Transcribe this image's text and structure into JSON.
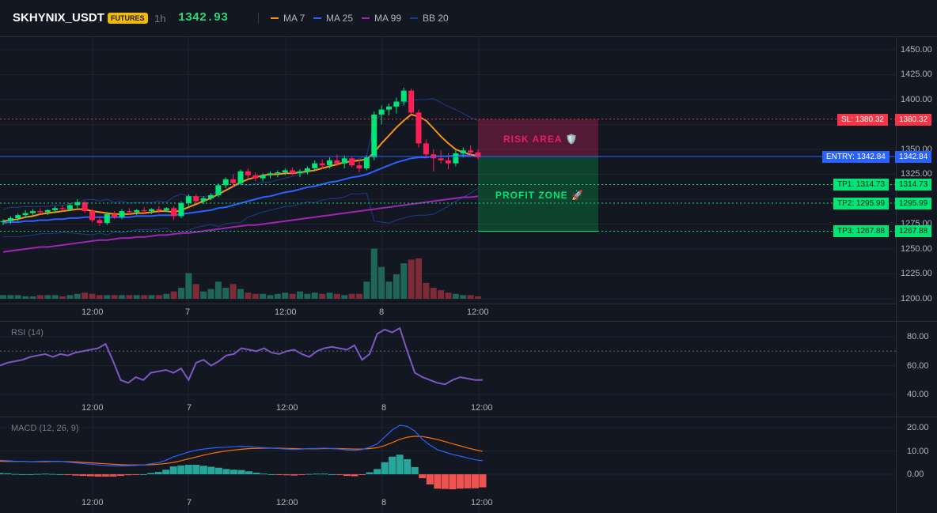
{
  "header": {
    "symbol": "SKHYNIX_USDT",
    "badge": "FUTURES",
    "timeframe": "1h",
    "price": "1342.93",
    "legend": [
      {
        "label": "MA 7",
        "color": "#f7931a"
      },
      {
        "label": "MA 25",
        "color": "#2962ff"
      },
      {
        "label": "MA 99",
        "color": "#9c27b0"
      },
      {
        "label": "BB 20",
        "color": "#1e3a8a"
      }
    ]
  },
  "price_axis": [
    "1450.00",
    "1425.00",
    "1400.00",
    "1375.00",
    "1350.00",
    "1325.00",
    "1300.00",
    "1275.00",
    "1250.00",
    "1225.00",
    "1200.00"
  ],
  "time_axis": [
    "12:00",
    "7",
    "12:00",
    "8",
    "12:00"
  ],
  "zones": {
    "risk_label": "RISK AREA 🛡️",
    "profit_label": "PROFIT ZONE 🚀"
  },
  "levels": {
    "sl": {
      "label": "SL: 1380.32",
      "value": "1380.32",
      "color": "#f23645"
    },
    "entry": {
      "label": "ENTRY: 1342.84",
      "value": "1342.84",
      "color": "#2962ff"
    },
    "tp1": {
      "label": "TP1: 1314.73",
      "value": "1314.73",
      "color": "#00e676"
    },
    "tp2": {
      "label": "TP2: 1295.99",
      "value": "1295.99",
      "color": "#00e676"
    },
    "tp3": {
      "label": "TP3: 1267.88",
      "value": "1267.88",
      "color": "#00e676"
    }
  },
  "rsi": {
    "title": "RSI (14)",
    "axis": [
      "80.00",
      "60.00",
      "40.00"
    ]
  },
  "macd": {
    "title": "MACD (12, 26, 9)",
    "axis": [
      "20.00",
      "10.00",
      "0.00"
    ]
  },
  "chart_data": {
    "type": "candlestick",
    "ylim": [
      1200,
      1450
    ],
    "candles_ohlc": [
      [
        1277,
        1280,
        1274,
        1278
      ],
      [
        1278,
        1283,
        1275,
        1281
      ],
      [
        1281,
        1286,
        1278,
        1284
      ],
      [
        1284,
        1289,
        1281,
        1286
      ],
      [
        1286,
        1290,
        1283,
        1288
      ],
      [
        1288,
        1291,
        1285,
        1287
      ],
      [
        1287,
        1290,
        1284,
        1289
      ],
      [
        1289,
        1293,
        1286,
        1291
      ],
      [
        1291,
        1294,
        1288,
        1290
      ],
      [
        1290,
        1296,
        1288,
        1294
      ],
      [
        1294,
        1300,
        1291,
        1297
      ],
      [
        1297,
        1298,
        1286,
        1288
      ],
      [
        1288,
        1290,
        1277,
        1279
      ],
      [
        1279,
        1283,
        1273,
        1276
      ],
      [
        1276,
        1287,
        1274,
        1285
      ],
      [
        1285,
        1288,
        1280,
        1282
      ],
      [
        1282,
        1290,
        1280,
        1288
      ],
      [
        1288,
        1291,
        1284,
        1287
      ],
      [
        1287,
        1290,
        1284,
        1289
      ],
      [
        1289,
        1292,
        1286,
        1288
      ],
      [
        1288,
        1291,
        1285,
        1290
      ],
      [
        1290,
        1293,
        1286,
        1289
      ],
      [
        1289,
        1292,
        1287,
        1291
      ],
      [
        1291,
        1293,
        1279,
        1283
      ],
      [
        1283,
        1298,
        1281,
        1296
      ],
      [
        1296,
        1305,
        1293,
        1303
      ],
      [
        1303,
        1305,
        1296,
        1298
      ],
      [
        1298,
        1303,
        1295,
        1301
      ],
      [
        1301,
        1306,
        1299,
        1304
      ],
      [
        1304,
        1316,
        1302,
        1314
      ],
      [
        1314,
        1322,
        1311,
        1320
      ],
      [
        1320,
        1325,
        1312,
        1316
      ],
      [
        1316,
        1330,
        1314,
        1328
      ],
      [
        1328,
        1331,
        1321,
        1324
      ],
      [
        1324,
        1327,
        1318,
        1321
      ],
      [
        1321,
        1326,
        1318,
        1324
      ],
      [
        1324,
        1328,
        1321,
        1326
      ],
      [
        1326,
        1329,
        1322,
        1327
      ],
      [
        1327,
        1331,
        1324,
        1329
      ],
      [
        1329,
        1332,
        1324,
        1326
      ],
      [
        1326,
        1330,
        1322,
        1328
      ],
      [
        1328,
        1333,
        1325,
        1331
      ],
      [
        1331,
        1339,
        1328,
        1336
      ],
      [
        1336,
        1340,
        1330,
        1334
      ],
      [
        1334,
        1342,
        1331,
        1339
      ],
      [
        1339,
        1345,
        1333,
        1336
      ],
      [
        1336,
        1344,
        1331,
        1341
      ],
      [
        1341,
        1343,
        1332,
        1334
      ],
      [
        1334,
        1340,
        1327,
        1331
      ],
      [
        1331,
        1344,
        1329,
        1342
      ],
      [
        1342,
        1388,
        1339,
        1385
      ],
      [
        1385,
        1394,
        1375,
        1390
      ],
      [
        1390,
        1396,
        1384,
        1393
      ],
      [
        1393,
        1402,
        1386,
        1398
      ],
      [
        1398,
        1412,
        1394,
        1409
      ],
      [
        1409,
        1411,
        1385,
        1387
      ],
      [
        1387,
        1390,
        1352,
        1356
      ],
      [
        1356,
        1360,
        1341,
        1345
      ],
      [
        1345,
        1350,
        1328,
        1341
      ],
      [
        1341,
        1349,
        1336,
        1339
      ],
      [
        1339,
        1346,
        1330,
        1336
      ],
      [
        1336,
        1350,
        1333,
        1346
      ],
      [
        1346,
        1352,
        1342,
        1349
      ],
      [
        1349,
        1354,
        1344,
        1347
      ],
      [
        1347,
        1350,
        1340,
        1342
      ]
    ],
    "ma7": [
      1278,
      1279,
      1280,
      1282,
      1283,
      1285,
      1286,
      1287,
      1288,
      1289,
      1290,
      1290,
      1288,
      1287,
      1286,
      1285,
      1285,
      1285,
      1286,
      1286,
      1287,
      1288,
      1288,
      1287,
      1289,
      1292,
      1295,
      1298,
      1301,
      1305,
      1309,
      1313,
      1317,
      1320,
      1322,
      1324,
      1325,
      1325,
      1326,
      1326,
      1327,
      1328,
      1329,
      1331,
      1333,
      1335,
      1337,
      1338,
      1339,
      1340,
      1347,
      1356,
      1364,
      1372,
      1379,
      1385,
      1383,
      1379,
      1371,
      1363,
      1356,
      1350,
      1347,
      1345,
      1343
    ],
    "ma25": [
      1276,
      1277,
      1277,
      1278,
      1278,
      1279,
      1279,
      1280,
      1280,
      1281,
      1281,
      1282,
      1282,
      1282,
      1282,
      1282,
      1282,
      1282,
      1283,
      1283,
      1283,
      1284,
      1284,
      1284,
      1285,
      1286,
      1287,
      1288,
      1289,
      1291,
      1292,
      1294,
      1296,
      1298,
      1300,
      1302,
      1303,
      1305,
      1307,
      1308,
      1310,
      1312,
      1313,
      1315,
      1317,
      1318,
      1320,
      1322,
      1323,
      1325,
      1328,
      1331,
      1334,
      1337,
      1339,
      1341,
      1342,
      1342,
      1343,
      1343,
      1343,
      1344,
      1344,
      1344,
      1345
    ],
    "ma99": [
      1247,
      1248,
      1249,
      1250,
      1251,
      1252,
      1252,
      1253,
      1254,
      1255,
      1256,
      1257,
      1258,
      1259,
      1259,
      1260,
      1261,
      1261,
      1262,
      1262,
      1263,
      1264,
      1264,
      1265,
      1266,
      1266,
      1267,
      1268,
      1269,
      1270,
      1271,
      1272,
      1273,
      1274,
      1274,
      1275,
      1276,
      1277,
      1278,
      1279,
      1280,
      1281,
      1282,
      1283,
      1284,
      1285,
      1286,
      1287,
      1288,
      1289,
      1290,
      1291,
      1292,
      1293,
      1294,
      1295,
      1296,
      1297,
      1298,
      1299,
      1300,
      1301,
      1302,
      1302,
      1303
    ],
    "rsi": [
      60,
      62,
      63,
      64,
      66,
      67,
      68,
      66,
      68,
      67,
      69,
      70,
      71,
      72,
      75,
      63,
      50,
      48,
      52,
      50,
      55,
      56,
      57,
      55,
      58,
      50,
      62,
      64,
      60,
      63,
      67,
      68,
      72,
      71,
      70,
      72,
      69,
      68,
      70,
      71,
      68,
      66,
      70,
      72,
      73,
      72,
      71,
      74,
      64,
      68,
      82,
      85,
      83,
      86,
      70,
      55,
      52,
      50,
      48,
      47,
      50,
      52,
      51,
      50,
      50
    ],
    "macd_line": [
      6,
      5.8,
      5.6,
      5.5,
      5.4,
      5.5,
      5.6,
      5.6,
      5.5,
      5.2,
      4.9,
      4.6,
      4.3,
      4,
      3.8,
      3.6,
      3.6,
      3.7,
      3.8,
      4,
      4.5,
      5,
      6,
      7.5,
      8.5,
      9.5,
      10.3,
      10.8,
      11.2,
      11.5,
      11.6,
      11.8,
      12,
      11.9,
      11.6,
      11.4,
      11.2,
      11,
      10.8,
      10.6,
      10.8,
      11,
      11.1,
      11.2,
      11,
      10.8,
      10.4,
      10.2,
      10.6,
      11.6,
      13,
      16,
      19,
      21,
      20.5,
      18.5,
      15,
      12.5,
      10.5,
      9.5,
      8.5,
      7.8,
      7,
      6.2,
      5.8
    ],
    "macd_signal": [
      5.6,
      5.5,
      5.5,
      5.5,
      5.4,
      5.4,
      5.4,
      5.5,
      5.5,
      5.4,
      5.3,
      5.1,
      4.9,
      4.7,
      4.5,
      4.3,
      4.1,
      4,
      4,
      4,
      4.1,
      4.3,
      4.6,
      5.1,
      5.8,
      6.6,
      7.4,
      8.2,
      8.9,
      9.5,
      10,
      10.4,
      10.7,
      11,
      11.1,
      11.2,
      11.2,
      11.2,
      11.1,
      11,
      10.9,
      10.9,
      10.9,
      11,
      11,
      11,
      10.9,
      10.8,
      10.8,
      11,
      11.4,
      12.3,
      13.6,
      15,
      15.9,
      16.3,
      16.2,
      15.6,
      14.9,
      14,
      13.1,
      12.2,
      11.3,
      10.5,
      9.8
    ],
    "volume": [
      3,
      3,
      3,
      2,
      2,
      3,
      3,
      3,
      2,
      3,
      4,
      5,
      4,
      3,
      3,
      3,
      3,
      3,
      3,
      3,
      3,
      3,
      4,
      6,
      9,
      21,
      12,
      6,
      8,
      14,
      9,
      12,
      8,
      5,
      4,
      4,
      3,
      4,
      5,
      4,
      6,
      4,
      5,
      4,
      5,
      4,
      3,
      4,
      4,
      14,
      41,
      26,
      14,
      20,
      29,
      32,
      33,
      13,
      9,
      7,
      5,
      4,
      3,
      3,
      2
    ]
  }
}
